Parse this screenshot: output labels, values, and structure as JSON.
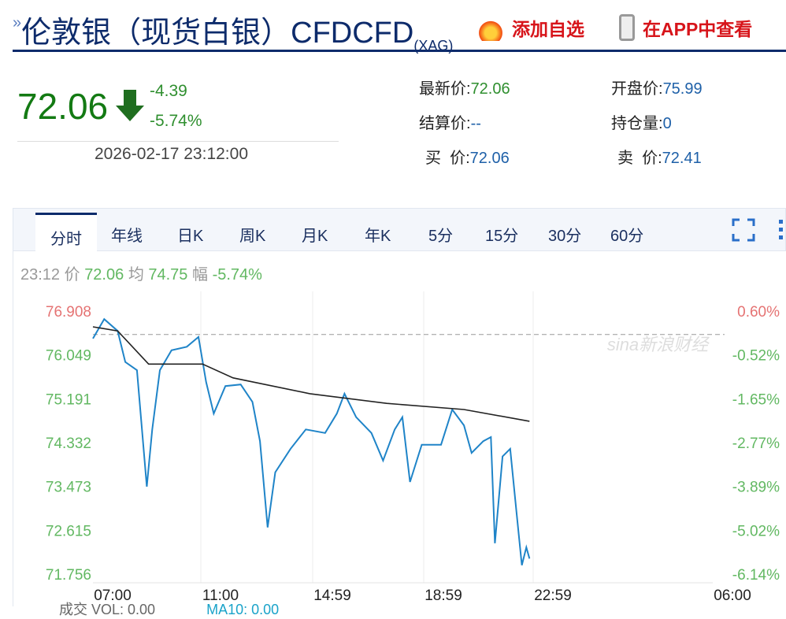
{
  "header": {
    "title": "伦敦银（现货白银）CFD",
    "code": "(XAG)",
    "add_watch": "添加自选",
    "view_app": "在APP中查看"
  },
  "quote": {
    "price": "72.06",
    "change": "-4.39",
    "change_pct": "-5.74%",
    "datetime": "2026-02-17 23:12:00",
    "fields": [
      {
        "label": "最新价:",
        "value": "72.06",
        "color": "green"
      },
      {
        "label": "开盘价:",
        "value": "75.99",
        "color": "blue"
      },
      {
        "label": "结算价:",
        "value": "--",
        "color": "blue"
      },
      {
        "label": "持仓量:",
        "value": "0",
        "color": "blue"
      },
      {
        "label": "买  价:",
        "value": "72.06",
        "color": "blue"
      },
      {
        "label": "卖  价:",
        "value": "72.41",
        "color": "blue"
      }
    ]
  },
  "tabs": [
    "分时",
    "年线",
    "日K",
    "周K",
    "月K",
    "年K",
    "5分",
    "15分",
    "30分",
    "60分"
  ],
  "active_tab": "分时",
  "info": {
    "time": "23:12",
    "price_label": "价",
    "price": "72.06",
    "avg_label": "均",
    "avg": "74.75",
    "amp_label": "幅",
    "amp": "-5.74%"
  },
  "footer": {
    "text": "成交 VOL: 0.00",
    "ma": "MA10: 0.00"
  },
  "watermark": "sina新浪财经",
  "colors": {
    "price_line": "#1f84c8",
    "avg_line": "#222222",
    "down": "#2f8f2f",
    "up": "#e57373",
    "title": "#0d2b6b"
  },
  "chart_data": {
    "type": "line",
    "x_ticks": [
      "07:00",
      "11:00",
      "14:59",
      "18:59",
      "22:59",
      "06:00"
    ],
    "y_ticks": [
      "76.908",
      "76.049",
      "75.191",
      "74.332",
      "73.473",
      "72.615",
      "71.756"
    ],
    "y_right_ticks": [
      "0.60%",
      "-0.52%",
      "-1.65%",
      "-2.77%",
      "-3.89%",
      "-5.02%",
      "-6.14%"
    ],
    "ylim": [
      71.756,
      76.908
    ],
    "prev_close": 76.45,
    "series": [
      {
        "key": "price",
        "points": [
          [
            "07:00",
            76.37
          ],
          [
            "07:25",
            76.75
          ],
          [
            "07:55",
            76.52
          ],
          [
            "08:12",
            75.91
          ],
          [
            "08:38",
            75.75
          ],
          [
            "09:00",
            73.47
          ],
          [
            "09:12",
            74.59
          ],
          [
            "09:29",
            75.75
          ],
          [
            "09:55",
            76.14
          ],
          [
            "10:29",
            76.21
          ],
          [
            "10:55",
            76.4
          ],
          [
            "11:12",
            75.52
          ],
          [
            "11:29",
            74.9
          ],
          [
            "11:55",
            75.44
          ],
          [
            "12:29",
            75.47
          ],
          [
            "12:55",
            75.13
          ],
          [
            "13:12",
            74.36
          ],
          [
            "13:29",
            72.67
          ],
          [
            "13:46",
            73.75
          ],
          [
            "14:20",
            74.21
          ],
          [
            "14:54",
            74.59
          ],
          [
            "15:37",
            74.52
          ],
          [
            "16:03",
            74.9
          ],
          [
            "16:20",
            75.29
          ],
          [
            "16:46",
            74.83
          ],
          [
            "17:20",
            74.52
          ],
          [
            "17:46",
            73.98
          ],
          [
            "18:12",
            74.59
          ],
          [
            "18:29",
            74.83
          ],
          [
            "18:46",
            73.56
          ],
          [
            "19:12",
            74.29
          ],
          [
            "19:55",
            74.29
          ],
          [
            "20:20",
            74.98
          ],
          [
            "20:46",
            74.67
          ],
          [
            "21:03",
            74.13
          ],
          [
            "21:29",
            74.36
          ],
          [
            "21:46",
            74.44
          ],
          [
            "21:55",
            72.36
          ],
          [
            "22:12",
            74.06
          ],
          [
            "22:29",
            74.21
          ],
          [
            "22:43",
            72.97
          ],
          [
            "22:55",
            71.93
          ],
          [
            "23:05",
            72.28
          ],
          [
            "23:12",
            72.06
          ]
        ]
      },
      {
        "key": "avg",
        "points": [
          [
            "07:00",
            76.6
          ],
          [
            "07:55",
            76.52
          ],
          [
            "09:04",
            75.87
          ],
          [
            "11:04",
            75.87
          ],
          [
            "12:12",
            75.6
          ],
          [
            "15:03",
            75.29
          ],
          [
            "17:54",
            75.1
          ],
          [
            "20:46",
            74.98
          ],
          [
            "23:12",
            74.75
          ]
        ]
      }
    ]
  }
}
